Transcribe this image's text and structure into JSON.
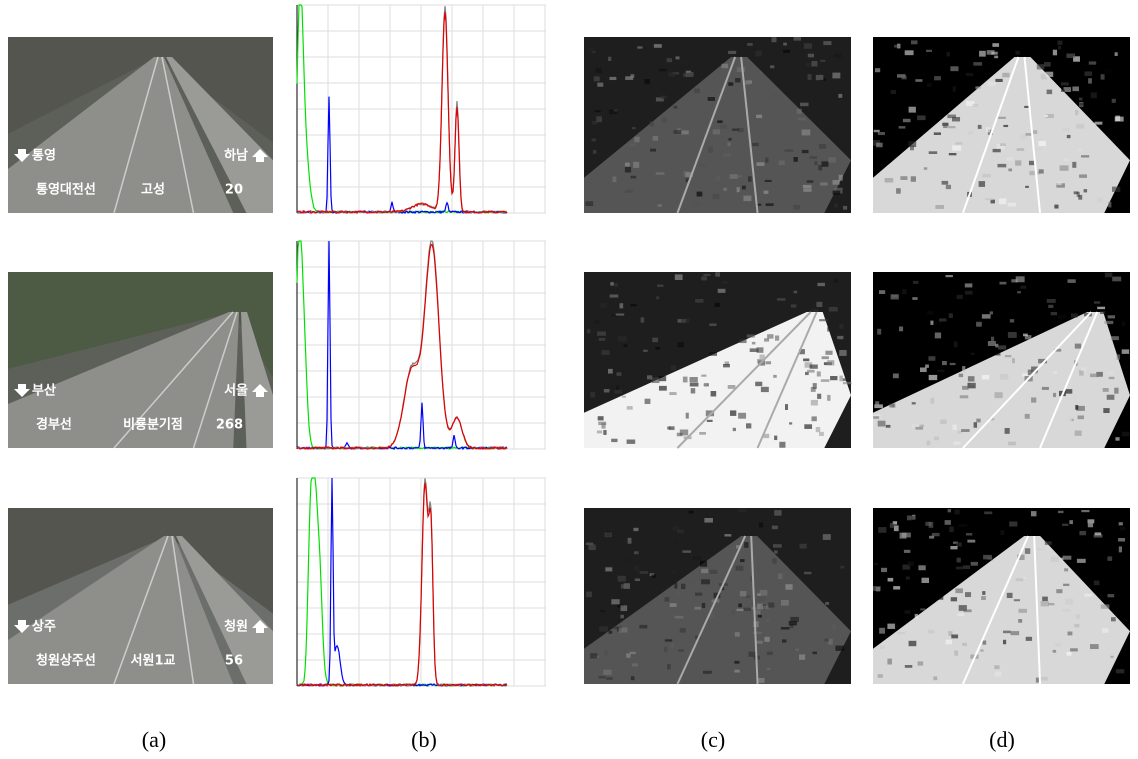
{
  "rows": [
    {
      "direction_left": "통영",
      "direction_right": "하남",
      "line_name": "통영대전선",
      "location": "고성",
      "number": "20"
    },
    {
      "direction_left": "부산",
      "direction_right": "서울",
      "line_name": "경부선",
      "location": "비룡분기점",
      "number": "268"
    },
    {
      "direction_left": "상주",
      "direction_right": "청원",
      "line_name": "청원상주선",
      "location": "서원1교",
      "number": "56"
    }
  ],
  "captions": [
    "(a)",
    "(b)",
    "(c)",
    "(d)"
  ]
}
